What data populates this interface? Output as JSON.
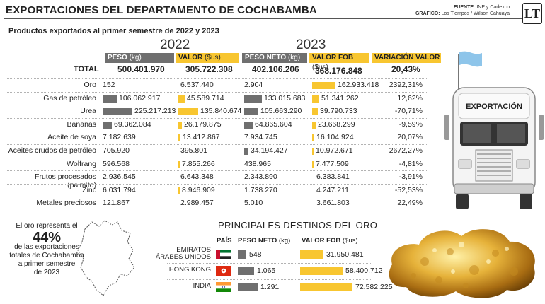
{
  "header": {
    "title": "EXPORTACIONES DEL DEPARTAMENTO DE COCHABAMBA",
    "source_label": "FUENTE:",
    "source_text": "INE y Cadexco",
    "graphic_label": "GRÁFICO:",
    "graphic_text": "Los Tiempos / Wilson Cahuaya",
    "logo_text": "LT"
  },
  "subtitle": "Productos exportados al primer semestre de 2022 y 2023",
  "years": {
    "y2022": "2022",
    "y2023": "2023"
  },
  "columns": {
    "peso": "PESO",
    "peso_unit": "(kg)",
    "valor": "VALOR",
    "valor_unit": "($us)",
    "peso_neto": "PESO NETO",
    "peso_neto_unit": "(kg)",
    "valor_fob": "VALOR FOB",
    "valor_fob_unit": "($us)",
    "variacion": "VARIACIÓN VALOR"
  },
  "total": {
    "label": "TOTAL",
    "peso_2022": "500.401.970",
    "valor_2022": "305.722.308",
    "peso_2023": "402.106.206",
    "valor_2023": "368.176.848",
    "variacion": "20,43%"
  },
  "colors": {
    "gray": "#6f6f6f",
    "yellow": "#f8c630"
  },
  "chart_data": {
    "type": "table",
    "title": "Productos exportados al primer semestre de 2022 y 2023",
    "columns": [
      "Producto",
      "Peso 2022 (kg)",
      "Valor 2022 ($us)",
      "Peso neto 2023 (kg)",
      "Valor FOB 2023 ($us)",
      "Variación valor"
    ],
    "rows": [
      {
        "name": "Oro",
        "peso22": 152,
        "peso22_label": "152",
        "valor22": 6537440,
        "valor22_label": "6.537.440",
        "peso23": 2904,
        "peso23_label": "2.904",
        "valor23": 162933418,
        "valor23_label": "162.933.418",
        "var": "2392,31%"
      },
      {
        "name": "Gas de petróleo",
        "peso22": 106062917,
        "peso22_label": "106.062.917",
        "valor22": 45589714,
        "valor22_label": "45.589.714",
        "peso23": 133015683,
        "peso23_label": "133.015.683",
        "valor23": 51341262,
        "valor23_label": "51.341.262",
        "var": "12,62%"
      },
      {
        "name": "Urea",
        "peso22": 225217213,
        "peso22_label": "225.217.213",
        "valor22": 135840674,
        "valor22_label": "135.840.674",
        "peso23": 105663290,
        "peso23_label": "105.663.290",
        "valor23": 39790733,
        "valor23_label": "39.790.733",
        "var": "-70,71%"
      },
      {
        "name": "Bananas",
        "peso22": 69362084,
        "peso22_label": "69.362.084",
        "valor22": 26179875,
        "valor22_label": "26.179.875",
        "peso23": 64865604,
        "peso23_label": "64.865.604",
        "valor23": 23668299,
        "valor23_label": "23.668.299",
        "var": "-9,59%"
      },
      {
        "name": "Aceite de soya",
        "peso22": 7182639,
        "peso22_label": "7.182.639",
        "valor22": 13412867,
        "valor22_label": "13.412.867",
        "peso23": 7934745,
        "peso23_label": "7.934.745",
        "valor23": 16104924,
        "valor23_label": "16.104.924",
        "var": "20,07%"
      },
      {
        "name": "Aceites crudos de petróleo",
        "peso22": 705920,
        "peso22_label": "705.920",
        "valor22": 395801,
        "valor22_label": "395.801",
        "peso23": 34194427,
        "peso23_label": "34.194.427",
        "valor23": 10972671,
        "valor23_label": "10.972.671",
        "var": "2672,27%"
      },
      {
        "name": "Wolfrang",
        "peso22": 596568,
        "peso22_label": "596.568",
        "valor22": 7855266,
        "valor22_label": "7.855.266",
        "peso23": 438965,
        "peso23_label": "438.965",
        "valor23": 7477509,
        "valor23_label": "7.477.509",
        "var": "-4,81%"
      },
      {
        "name": "Frutos procesados (palmito)",
        "peso22": 2936545,
        "peso22_label": "2.936.545",
        "valor22": 6643348,
        "valor22_label": "6.643.348",
        "peso23": 2343890,
        "peso23_label": "2.343.890",
        "valor23": 6383841,
        "valor23_label": "6.383.841",
        "var": "-3,91%"
      },
      {
        "name": "Zinc",
        "peso22": 6031794,
        "peso22_label": "6.031.794",
        "valor22": 8946909,
        "valor22_label": "8.946.909",
        "peso23": 1738270,
        "peso23_label": "1.738.270",
        "valor23": 4247211,
        "valor23_label": "4.247.211",
        "var": "-52,53%"
      },
      {
        "name": "Metales preciosos",
        "peso22": 121867,
        "peso22_label": "121.867",
        "valor22": 2989457,
        "valor22_label": "2.989.457",
        "peso23": 5010,
        "peso23_label": "5.010",
        "valor23": 3661803,
        "valor23_label": "3.661.803",
        "var": "22,49%"
      }
    ],
    "scale_max": {
      "peso": 225217213,
      "valor": 162933418
    }
  },
  "truck": {
    "label": "EXPORTACIÓN"
  },
  "map_text": {
    "line1": "El oro representa el",
    "percent": "44%",
    "line2": "de las exportaciones",
    "line3": "totales de Cochabamba",
    "line4": "a primer semestre",
    "line5": "de 2023"
  },
  "destinations": {
    "title": "PRINCIPALES DESTINOS DEL ORO",
    "col_pais": "PAÍS",
    "col_peso": "PESO NETO",
    "col_peso_unit": "(kg)",
    "col_valor": "VALOR FOB",
    "col_valor_unit": "($us)",
    "rows": [
      {
        "country_l1": "EMIRATOS",
        "country_l2": "ÁRABES UNIDOS",
        "peso": 548,
        "peso_label": "548",
        "valor": 31950481,
        "valor_label": "31.950.481",
        "flag": "uae-flag"
      },
      {
        "country_l1": "",
        "country_l2": "HONG KONG",
        "peso": 1065,
        "peso_label": "1.065",
        "valor": 58400712,
        "valor_label": "58.400.712",
        "flag": "hong-kong-flag"
      },
      {
        "country_l1": "",
        "country_l2": "INDIA",
        "peso": 1291,
        "peso_label": "1.291",
        "valor": 72582225,
        "valor_label": "72.582.225",
        "flag": "india-flag"
      }
    ]
  }
}
